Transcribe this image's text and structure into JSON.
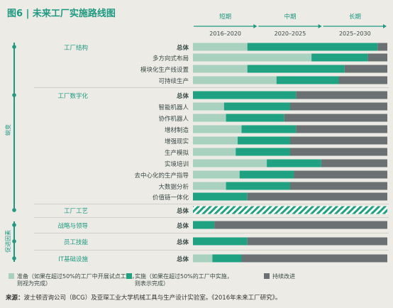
{
  "title": "图6 | 未来工厂实施路线图",
  "phases": [
    {
      "name": "短期",
      "range": "2016–2020"
    },
    {
      "name": "中期",
      "range": "2020–2025"
    },
    {
      "name": "长期",
      "range": "2025–2030"
    }
  ],
  "side_labels": {
    "upper": "蜕变",
    "lower": "促进因素"
  },
  "source": {
    "label": "来源：",
    "text": "波士顿咨询公司（BCG）及亚琛工业大学机械工具与生产设计实验室。《2016年未来工厂研究》。"
  },
  "colors": {
    "prep": "#a8d1bf",
    "impl": "#1ea282",
    "continuous": "#6b7072",
    "text": "#3a4a46",
    "accent": "#1e9a80"
  },
  "chart_data": {
    "type": "bar",
    "orientation": "horizontal-stacked",
    "xlim": [
      0,
      100
    ],
    "series_order": [
      "prep",
      "impl",
      "continuous"
    ],
    "legend": [
      {
        "key": "prep",
        "text": "准备（如果在超过50%的工厂中开展试点工作，则视为完成）"
      },
      {
        "key": "impl",
        "text": "实施（如果在超过50%的工厂中实施，则表示完成）"
      },
      {
        "key": "continuous",
        "text": "持续改进"
      }
    ],
    "groups": [
      {
        "name": "工厂结构",
        "rows": [
          {
            "label": "总体",
            "bold": true,
            "prep": 28,
            "impl": 67,
            "continuous": 5
          },
          {
            "label": "多方向式布局",
            "bold": false,
            "prep": 61,
            "impl": 29,
            "continuous": 10
          },
          {
            "label": "模块化生产线设置",
            "bold": false,
            "prep": 28,
            "impl": 50,
            "continuous": 22
          },
          {
            "label": "可持续生产",
            "bold": false,
            "prep": 43,
            "impl": 32,
            "continuous": 25
          }
        ]
      },
      {
        "name": "工厂数字化",
        "rows": [
          {
            "label": "总体",
            "bold": true,
            "prep": 0,
            "impl": 53,
            "continuous": 47
          },
          {
            "label": "智能机器人",
            "bold": false,
            "prep": 16,
            "impl": 34,
            "continuous": 50
          },
          {
            "label": "协作机器人",
            "bold": false,
            "prep": 17,
            "impl": 30,
            "continuous": 53
          },
          {
            "label": "增材制造",
            "bold": false,
            "prep": 25,
            "impl": 28,
            "continuous": 47
          },
          {
            "label": "增强现实",
            "bold": false,
            "prep": 23,
            "impl": 27,
            "continuous": 50
          },
          {
            "label": "生产模拟",
            "bold": false,
            "prep": 22,
            "impl": 28,
            "continuous": 50
          },
          {
            "label": "实境培训",
            "bold": false,
            "prep": 38,
            "impl": 28,
            "continuous": 34
          },
          {
            "label": "去中心化的生产指导",
            "bold": false,
            "prep": 24,
            "impl": 28,
            "continuous": 48
          },
          {
            "label": "大数据分析",
            "bold": false,
            "prep": 17,
            "impl": 33,
            "continuous": 50
          },
          {
            "label": "价值链一体化",
            "bold": false,
            "prep": 0,
            "impl": 28,
            "continuous": 72
          }
        ]
      },
      {
        "name": "工厂工艺",
        "rows": [
          {
            "label": "总体",
            "bold": true,
            "pattern": "hatched",
            "prep": 0,
            "impl": 0,
            "continuous": 100
          }
        ]
      },
      {
        "name": "战略与领导",
        "rows": [
          {
            "label": "总体",
            "bold": true,
            "prep": 0,
            "impl": 11,
            "continuous": 89
          }
        ]
      },
      {
        "name": "员工技能",
        "rows": [
          {
            "label": "总体",
            "bold": true,
            "prep": 0,
            "impl": 28,
            "continuous": 72
          }
        ]
      },
      {
        "name": "IT基础设施",
        "rows": [
          {
            "label": "总体",
            "bold": true,
            "prep": 10,
            "impl": 15,
            "continuous": 75
          }
        ]
      }
    ]
  }
}
